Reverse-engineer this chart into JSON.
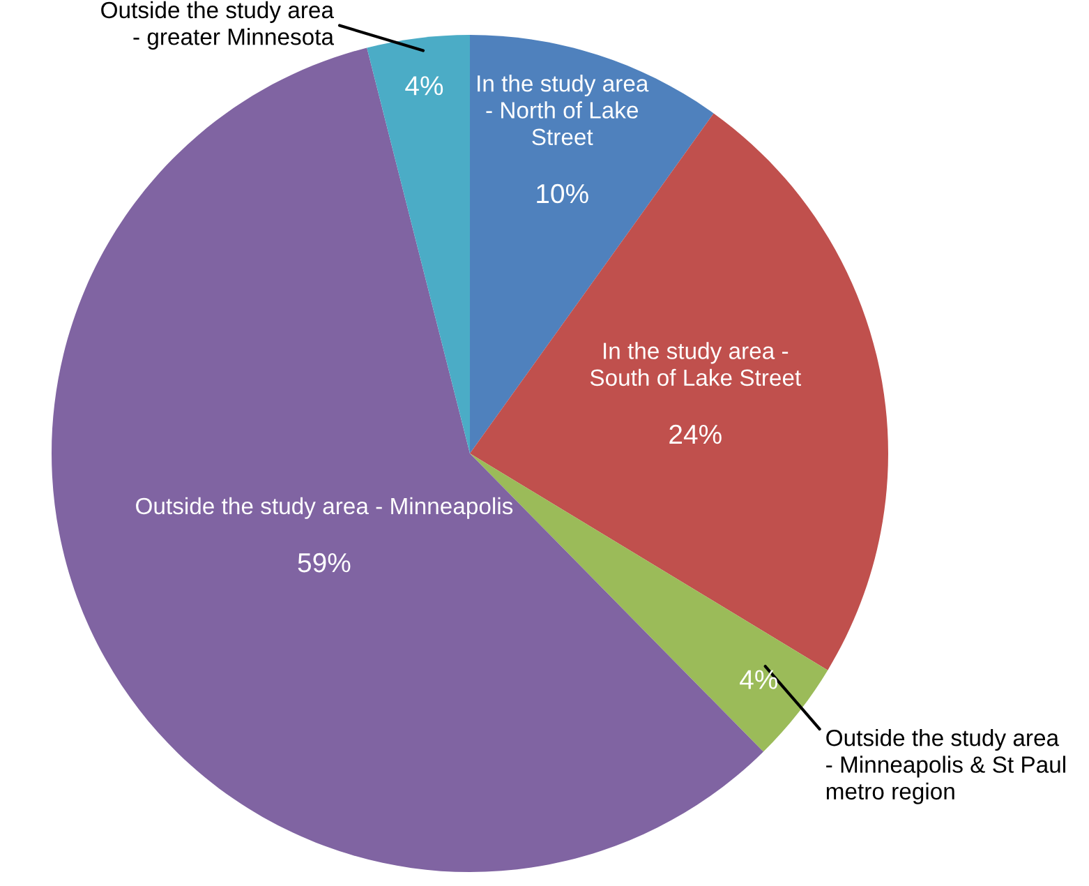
{
  "chart_data": {
    "type": "pie",
    "categories": [
      "In the study area\n- North of Lake\nStreet",
      "In the study area -\nSouth of Lake Street",
      "Outside the study area\n- Minneapolis & St Paul\nmetro region",
      "Outside the study area - Minneapolis",
      "Outside the study area\n- greater Minnesota"
    ],
    "values": [
      10,
      24,
      4,
      59,
      4
    ],
    "value_labels": [
      "10%",
      "24%",
      "4%",
      "59%",
      "4%"
    ],
    "colors": [
      "#4f81bd",
      "#c0504d",
      "#9bbb59",
      "#8064a2",
      "#4bacc6"
    ],
    "legend": false
  }
}
